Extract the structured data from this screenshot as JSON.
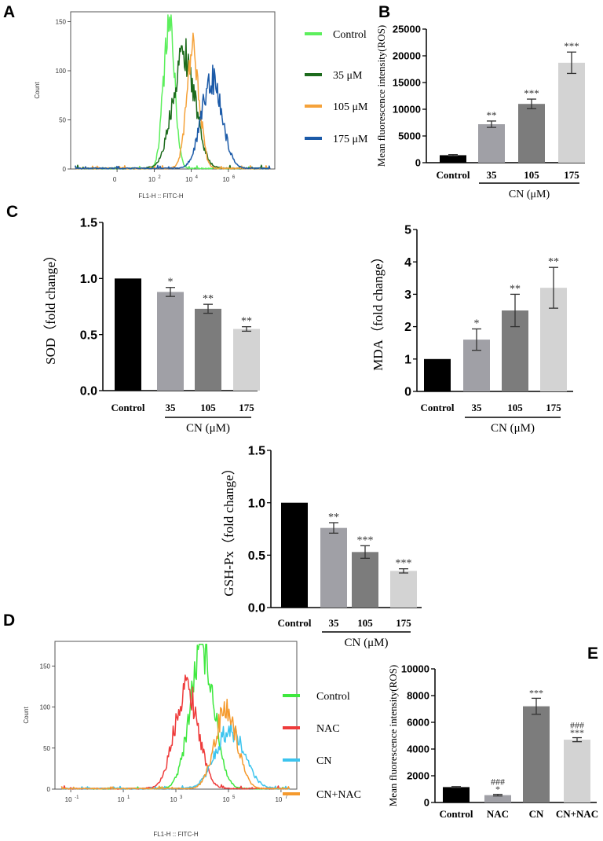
{
  "panel_letters": [
    "A",
    "B",
    "C",
    "D",
    "E"
  ],
  "chart_data": [
    {
      "id": "A",
      "type": "line",
      "subtype": "flow-cytometry-histogram",
      "xlabel": "FL1-H :: FITC-H",
      "ylabel": "Count",
      "x_ticks": [
        {
          "value": 0,
          "label": "0"
        },
        {
          "value": 2,
          "label": "10",
          "sup": "2"
        },
        {
          "value": 4,
          "label": "10",
          "sup": "4"
        },
        {
          "value": 6,
          "label": "10",
          "sup": "6"
        }
      ],
      "xlim": [
        -2.5,
        8.5
      ],
      "y_ticks": [
        0,
        50,
        100,
        150
      ],
      "ylim": [
        0,
        160
      ],
      "series": [
        {
          "name": "Control",
          "color": "#5cef5c",
          "mu": 2.8,
          "sigma": 0.3,
          "peak": 152
        },
        {
          "name": "35 μM",
          "color": "#1d6b1d",
          "mu": 3.6,
          "sigma": 0.6,
          "peak": 118
        },
        {
          "name": "105 μM",
          "color": "#f5a23a",
          "mu": 4.1,
          "sigma": 0.35,
          "peak": 119
        },
        {
          "name": "175 μM",
          "color": "#1b5aa8",
          "mu": 5.1,
          "sigma": 0.55,
          "peak": 91
        }
      ]
    },
    {
      "id": "B",
      "type": "bar",
      "ylabel": "Mean fluorescence intensity(ROS)",
      "categories": [
        "Control",
        "35",
        "105",
        "175"
      ],
      "group_label": "CN (μM)",
      "values": [
        1400,
        7200,
        11000,
        18700
      ],
      "errors": [
        120,
        600,
        900,
        2000
      ],
      "significance": [
        "",
        "**",
        "***",
        "***"
      ],
      "ylim": [
        0,
        25000
      ],
      "y_ticks": [
        0,
        5000,
        10000,
        15000,
        20000,
        25000
      ],
      "colors": [
        "#000000",
        "#a0a0a6",
        "#7c7c7c",
        "#d3d3d3"
      ]
    },
    {
      "id": "C-SOD",
      "type": "bar",
      "ylabel": "SOD（fold change）",
      "categories": [
        "Control",
        "35",
        "105",
        "175"
      ],
      "group_label": "CN (μM)",
      "values": [
        1.0,
        0.88,
        0.73,
        0.55
      ],
      "errors": [
        0,
        0.04,
        0.04,
        0.02
      ],
      "significance": [
        "",
        "*",
        "**",
        "**"
      ],
      "ylim": [
        0,
        1.5
      ],
      "y_ticks": [
        "0.0",
        "0.5",
        "1.0",
        "1.5"
      ],
      "colors": [
        "#000000",
        "#a0a0a6",
        "#7c7c7c",
        "#d3d3d3"
      ]
    },
    {
      "id": "C-MDA",
      "type": "bar",
      "ylabel": "MDA（fold change）",
      "categories": [
        "Control",
        "35",
        "105",
        "175"
      ],
      "group_label": "CN (μM)",
      "values": [
        1.0,
        1.6,
        2.5,
        3.2
      ],
      "errors": [
        0,
        0.33,
        0.5,
        0.63
      ],
      "significance": [
        "",
        "*",
        "**",
        "**"
      ],
      "ylim": [
        0,
        5
      ],
      "y_ticks": [
        "0",
        "1",
        "2",
        "3",
        "4",
        "5"
      ],
      "colors": [
        "#000000",
        "#a0a0a6",
        "#7c7c7c",
        "#d3d3d3"
      ]
    },
    {
      "id": "C-GSH",
      "type": "bar",
      "ylabel": "GSH-Px（fold change）",
      "categories": [
        "Control",
        "35",
        "105",
        "175"
      ],
      "group_label": "CN (μM)",
      "values": [
        1.0,
        0.76,
        0.53,
        0.35
      ],
      "errors": [
        0,
        0.05,
        0.06,
        0.02
      ],
      "significance": [
        "",
        "**",
        "***",
        "***"
      ],
      "ylim": [
        0,
        1.5
      ],
      "y_ticks": [
        "0.0",
        "0.5",
        "1.0",
        "1.5"
      ],
      "colors": [
        "#000000",
        "#a0a0a6",
        "#7c7c7c",
        "#d3d3d3"
      ]
    },
    {
      "id": "D",
      "type": "line",
      "subtype": "flow-cytometry-histogram",
      "xlabel": "FL1-H :: FITC-H",
      "ylabel": "Count",
      "x_ticks": [
        {
          "value": -1,
          "label": "10",
          "sup": "-1"
        },
        {
          "value": 1,
          "label": "10",
          "sup": "1"
        },
        {
          "value": 3,
          "label": "10",
          "sup": "3"
        },
        {
          "value": 5,
          "label": "10",
          "sup": "5"
        },
        {
          "value": 7,
          "label": "10",
          "sup": "7"
        }
      ],
      "xlim": [
        -1.6,
        7.6
      ],
      "y_ticks": [
        0,
        50,
        100,
        150
      ],
      "ylim": [
        0,
        180
      ],
      "series": [
        {
          "name": "Control",
          "color": "#3ee83e",
          "mu": 4.0,
          "sigma": 0.45,
          "peak": 172
        },
        {
          "name": "NAC",
          "color": "#ee3b3b",
          "mu": 3.4,
          "sigma": 0.45,
          "peak": 125
        },
        {
          "name": "CN",
          "color": "#3cc4ee",
          "mu": 5.05,
          "sigma": 0.55,
          "peak": 72
        },
        {
          "name": "CN+NAC",
          "color": "#f59a2e",
          "mu": 4.9,
          "sigma": 0.42,
          "peak": 96
        }
      ]
    },
    {
      "id": "E",
      "type": "bar",
      "ylabel": "Mean fluorescence intensity(ROS)",
      "categories": [
        "Control",
        "NAC",
        "CN",
        "CN+NAC"
      ],
      "values": [
        1150,
        550,
        7200,
        4700
      ],
      "errors": [
        40,
        60,
        600,
        150
      ],
      "significance": [
        "",
        "###\n*",
        "***",
        "###\n***"
      ],
      "ylim": [
        0,
        10000
      ],
      "y_ticks": [
        0,
        2000,
        4000,
        6000,
        8000,
        10000
      ],
      "colors": [
        "#000000",
        "#a0a0a6",
        "#7c7c7c",
        "#d3d3d3"
      ]
    }
  ]
}
